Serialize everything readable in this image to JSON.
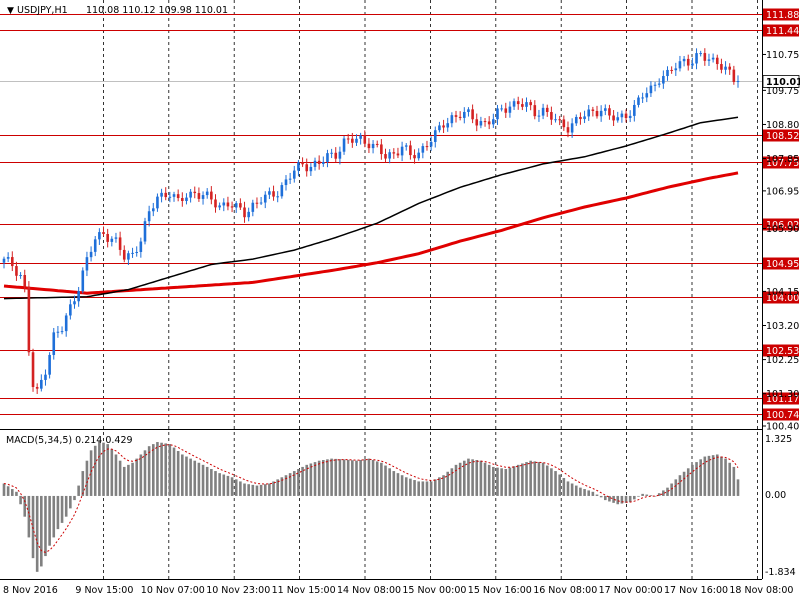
{
  "header": {
    "symbol_label": "USDJPY,H1",
    "ohlc_label": "110.08 110.12 109.98 110.01"
  },
  "macd": {
    "label": "MACD(5,34,5) 0.214 0.429",
    "ticks": [
      "1.325",
      "0.00",
      "-1.834"
    ]
  },
  "colors": {
    "bull": "#1e6fd9",
    "bear": "#d42222",
    "level": "#cc0000",
    "ma_slow": "#e00000",
    "ma_fast": "#000000",
    "hist": "#808080",
    "signal": "#cc0000"
  },
  "chart_data": {
    "type": "candlestick",
    "symbol": "USDJPY",
    "timeframe": "H1",
    "ylim": [
      100.4,
      112.1
    ],
    "x_ticks": [
      "8 Nov 2016",
      "9 Nov 15:00",
      "10 Nov 07:00",
      "10 Nov 23:00",
      "11 Nov 15:00",
      "14 Nov 08:00",
      "15 Nov 00:00",
      "15 Nov 16:00",
      "16 Nov 08:00",
      "17 Nov 00:00",
      "17 Nov 16:00",
      "18 Nov 08:00"
    ],
    "y_ticks": [
      {
        "value": 110.75,
        "label": "110.75"
      },
      {
        "value": 109.75,
        "label": "109.75"
      },
      {
        "value": 108.8,
        "label": "108.80"
      },
      {
        "value": 107.85,
        "label": "107.85"
      },
      {
        "value": 106.95,
        "label": "106.95"
      },
      {
        "value": 105.9,
        "label": "105.90"
      },
      {
        "value": 104.15,
        "label": "104.15"
      },
      {
        "value": 103.2,
        "label": "103.20"
      },
      {
        "value": 102.25,
        "label": "102.25"
      },
      {
        "value": 101.3,
        "label": "101.30"
      },
      {
        "value": 100.4,
        "label": "100.40"
      }
    ],
    "levels": [
      {
        "value": 111.88,
        "label": "111.88"
      },
      {
        "value": 111.44,
        "label": "111.44"
      },
      {
        "value": 108.52,
        "label": "108.52"
      },
      {
        "value": 107.75,
        "label": "107.75"
      },
      {
        "value": 106.02,
        "label": "106.02"
      },
      {
        "value": 104.95,
        "label": "104.95"
      },
      {
        "value": 104.0,
        "label": "104.00"
      },
      {
        "value": 102.53,
        "label": "102.53"
      },
      {
        "value": 101.17,
        "label": "101.17"
      },
      {
        "value": 100.74,
        "label": "100.74"
      }
    ],
    "current_price": {
      "value": 110.01,
      "label": "110.01"
    },
    "price_keypoints": [
      [
        0,
        105.0
      ],
      [
        2,
        104.9
      ],
      [
        4,
        104.6
      ],
      [
        5,
        104.2
      ],
      [
        6,
        102.5
      ],
      [
        7,
        101.5
      ],
      [
        8,
        101.3
      ],
      [
        10,
        102.0
      ],
      [
        12,
        102.9
      ],
      [
        14,
        103.1
      ],
      [
        16,
        103.7
      ],
      [
        18,
        104.3
      ],
      [
        20,
        105.0
      ],
      [
        22,
        105.6
      ],
      [
        24,
        105.8
      ],
      [
        27,
        105.5
      ],
      [
        29,
        105.1
      ],
      [
        31,
        105.2
      ],
      [
        33,
        105.6
      ],
      [
        35,
        106.3
      ],
      [
        37,
        106.8
      ],
      [
        40,
        106.9
      ],
      [
        42,
        106.6
      ],
      [
        44,
        106.85
      ],
      [
        46,
        106.9
      ],
      [
        48,
        106.8
      ],
      [
        50,
        106.7
      ],
      [
        52,
        106.55
      ],
      [
        54,
        106.6
      ],
      [
        56,
        106.45
      ],
      [
        58,
        106.35
      ],
      [
        60,
        106.55
      ],
      [
        62,
        106.7
      ],
      [
        64,
        106.8
      ],
      [
        66,
        106.95
      ],
      [
        68,
        107.2
      ],
      [
        70,
        107.5
      ],
      [
        72,
        107.7
      ],
      [
        74,
        107.65
      ],
      [
        76,
        107.7
      ],
      [
        78,
        107.9
      ],
      [
        80,
        108.0
      ],
      [
        82,
        108.3
      ],
      [
        84,
        108.35
      ],
      [
        86,
        108.4
      ],
      [
        88,
        108.3
      ],
      [
        90,
        108.1
      ],
      [
        92,
        107.9
      ],
      [
        94,
        108.0
      ],
      [
        96,
        108.2
      ],
      [
        98,
        107.9
      ],
      [
        100,
        108.0
      ],
      [
        102,
        108.3
      ],
      [
        104,
        108.5
      ],
      [
        106,
        108.8
      ],
      [
        108,
        109.0
      ],
      [
        110,
        109.1
      ],
      [
        112,
        109.05
      ],
      [
        114,
        108.9
      ],
      [
        116,
        108.85
      ],
      [
        118,
        108.95
      ],
      [
        120,
        109.2
      ],
      [
        122,
        109.35
      ],
      [
        124,
        109.4
      ],
      [
        126,
        109.3
      ],
      [
        128,
        109.15
      ],
      [
        130,
        109.2
      ],
      [
        132,
        109.0
      ],
      [
        134,
        108.8
      ],
      [
        136,
        108.75
      ],
      [
        138,
        108.9
      ],
      [
        140,
        109.05
      ],
      [
        142,
        109.15
      ],
      [
        144,
        109.25
      ],
      [
        146,
        109.0
      ],
      [
        148,
        108.95
      ],
      [
        150,
        109.1
      ],
      [
        152,
        109.25
      ],
      [
        154,
        109.6
      ],
      [
        156,
        109.8
      ],
      [
        158,
        110.1
      ],
      [
        160,
        110.15
      ],
      [
        162,
        110.45
      ],
      [
        164,
        110.6
      ],
      [
        166,
        110.55
      ],
      [
        168,
        110.7
      ],
      [
        170,
        110.65
      ],
      [
        172,
        110.55
      ],
      [
        174,
        110.3
      ],
      [
        176,
        110.05
      ],
      [
        177,
        110.01
      ]
    ],
    "ma_fast": [
      [
        0,
        103.95
      ],
      [
        20,
        104.0
      ],
      [
        30,
        104.2
      ],
      [
        40,
        104.55
      ],
      [
        50,
        104.9
      ],
      [
        60,
        105.05
      ],
      [
        70,
        105.3
      ],
      [
        80,
        105.65
      ],
      [
        90,
        106.05
      ],
      [
        100,
        106.6
      ],
      [
        110,
        107.05
      ],
      [
        120,
        107.4
      ],
      [
        130,
        107.7
      ],
      [
        140,
        107.9
      ],
      [
        150,
        108.2
      ],
      [
        160,
        108.55
      ],
      [
        168,
        108.85
      ],
      [
        177,
        109.0
      ]
    ],
    "ma_slow": [
      [
        0,
        104.3
      ],
      [
        20,
        104.1
      ],
      [
        40,
        104.25
      ],
      [
        60,
        104.4
      ],
      [
        80,
        104.75
      ],
      [
        90,
        104.95
      ],
      [
        100,
        105.2
      ],
      [
        110,
        105.55
      ],
      [
        120,
        105.85
      ],
      [
        130,
        106.2
      ],
      [
        140,
        106.5
      ],
      [
        150,
        106.75
      ],
      [
        160,
        107.05
      ],
      [
        170,
        107.3
      ],
      [
        177,
        107.45
      ]
    ],
    "macd_ylim": [
      -1.834,
      1.325
    ],
    "macd_hist_keypoints": [
      [
        0,
        0.3
      ],
      [
        3,
        0.1
      ],
      [
        5,
        -0.5
      ],
      [
        6,
        -1.0
      ],
      [
        7,
        -1.5
      ],
      [
        8,
        -1.83
      ],
      [
        9,
        -1.7
      ],
      [
        11,
        -1.2
      ],
      [
        13,
        -0.8
      ],
      [
        15,
        -0.5
      ],
      [
        17,
        -0.1
      ],
      [
        19,
        0.6
      ],
      [
        21,
        1.1
      ],
      [
        23,
        1.32
      ],
      [
        25,
        1.25
      ],
      [
        27,
        1.0
      ],
      [
        29,
        0.7
      ],
      [
        31,
        0.8
      ],
      [
        33,
        1.0
      ],
      [
        35,
        1.2
      ],
      [
        37,
        1.3
      ],
      [
        40,
        1.25
      ],
      [
        43,
        1.0
      ],
      [
        46,
        0.85
      ],
      [
        49,
        0.7
      ],
      [
        52,
        0.55
      ],
      [
        55,
        0.45
      ],
      [
        58,
        0.3
      ],
      [
        61,
        0.25
      ],
      [
        64,
        0.3
      ],
      [
        67,
        0.45
      ],
      [
        70,
        0.6
      ],
      [
        73,
        0.75
      ],
      [
        76,
        0.85
      ],
      [
        79,
        0.9
      ],
      [
        82,
        0.88
      ],
      [
        85,
        0.85
      ],
      [
        88,
        0.9
      ],
      [
        91,
        0.8
      ],
      [
        94,
        0.6
      ],
      [
        97,
        0.45
      ],
      [
        100,
        0.35
      ],
      [
        103,
        0.35
      ],
      [
        106,
        0.5
      ],
      [
        109,
        0.75
      ],
      [
        112,
        0.9
      ],
      [
        115,
        0.85
      ],
      [
        118,
        0.7
      ],
      [
        121,
        0.65
      ],
      [
        124,
        0.75
      ],
      [
        127,
        0.85
      ],
      [
        130,
        0.8
      ],
      [
        133,
        0.6
      ],
      [
        136,
        0.35
      ],
      [
        139,
        0.2
      ],
      [
        142,
        0.1
      ],
      [
        145,
        -0.1
      ],
      [
        148,
        -0.2
      ],
      [
        151,
        -0.15
      ],
      [
        154,
        0.05
      ],
      [
        157,
        0.0
      ],
      [
        160,
        0.2
      ],
      [
        163,
        0.5
      ],
      [
        166,
        0.75
      ],
      [
        169,
        0.95
      ],
      [
        172,
        1.0
      ],
      [
        174,
        0.9
      ],
      [
        176,
        0.7
      ],
      [
        177,
        0.4
      ]
    ]
  }
}
